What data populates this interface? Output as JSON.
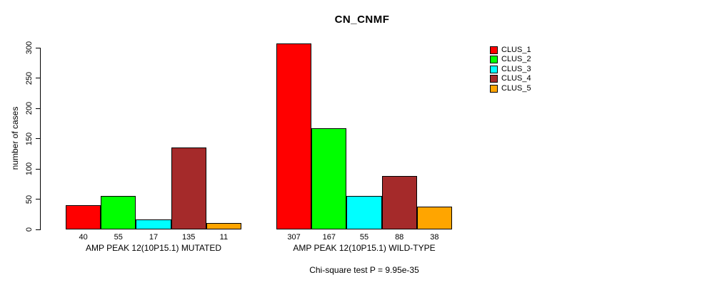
{
  "chart_data": {
    "type": "bar",
    "title": "CN_CNMF",
    "ylabel": "number of cases",
    "ylim": [
      0,
      300
    ],
    "yticks": [
      0,
      50,
      100,
      150,
      200,
      250,
      300
    ],
    "grid": false,
    "legend_position": "right",
    "series_names": [
      "CLUS_1",
      "CLUS_2",
      "CLUS_3",
      "CLUS_4",
      "CLUS_5"
    ],
    "series_colors": [
      "#ff0000",
      "#00ff00",
      "#00ffff",
      "#a52a2a",
      "#ffa500"
    ],
    "groups": [
      {
        "label": "AMP PEAK 12(10P15.1) MUTATED",
        "values": [
          40,
          55,
          17,
          135,
          11
        ]
      },
      {
        "label": "AMP PEAK 12(10P15.1) WILD-TYPE",
        "values": [
          307,
          167,
          55,
          88,
          38
        ]
      }
    ],
    "footnote": "Chi-square test P = 9.95e-35"
  }
}
